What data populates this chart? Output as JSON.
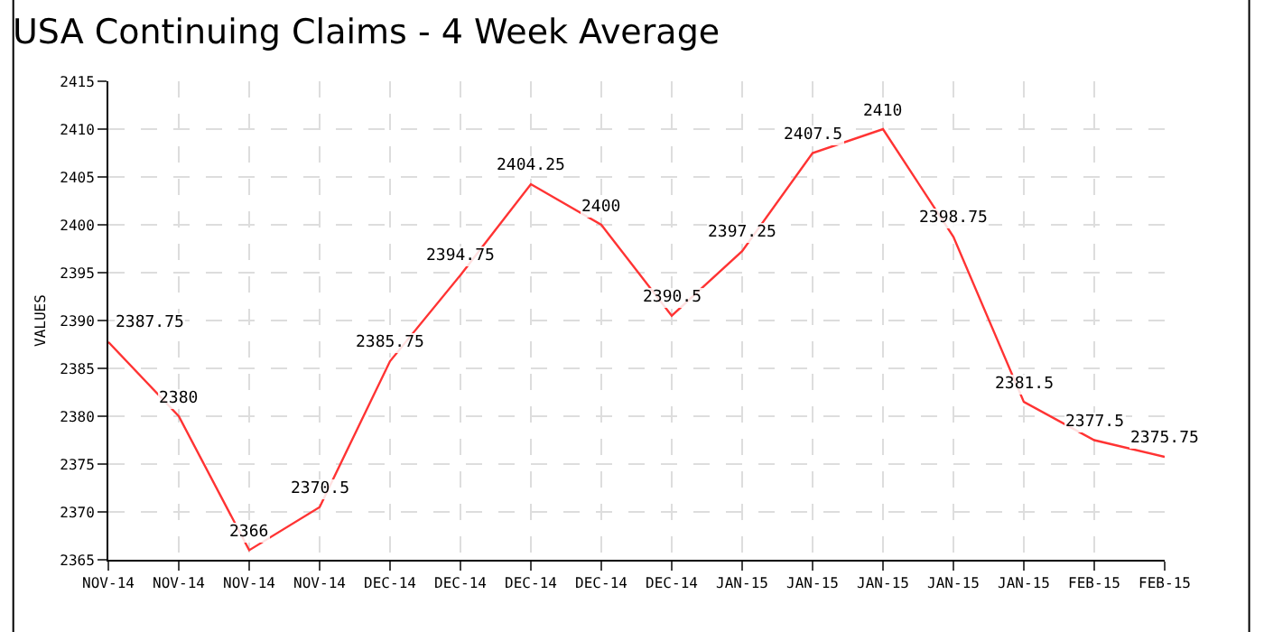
{
  "chart_data": {
    "type": "line",
    "title": "USA Continuing Claims - 4 Week Average",
    "ylabel": "VALUES",
    "categories": [
      "NOV-14",
      "NOV-14",
      "NOV-14",
      "NOV-14",
      "DEC-14",
      "DEC-14",
      "DEC-14",
      "DEC-14",
      "DEC-14",
      "JAN-15",
      "JAN-15",
      "JAN-15",
      "JAN-15",
      "JAN-15",
      "FEB-15",
      "FEB-15"
    ],
    "series": [
      {
        "color": "#ff3333",
        "values": [
          2387.75,
          2380,
          2366,
          2370.5,
          2385.75,
          2394.75,
          2404.25,
          2400,
          2390.5,
          2397.25,
          2407.5,
          2410,
          2398.75,
          2381.5,
          2377.5,
          2375.75
        ]
      }
    ],
    "ylim": [
      2365,
      2415
    ],
    "yticks": [
      2365,
      2370,
      2375,
      2380,
      2385,
      2390,
      2395,
      2400,
      2405,
      2410,
      2415
    ],
    "grid": true,
    "data_labels": true,
    "legend": false,
    "marker": "none",
    "line_style": "solid"
  }
}
